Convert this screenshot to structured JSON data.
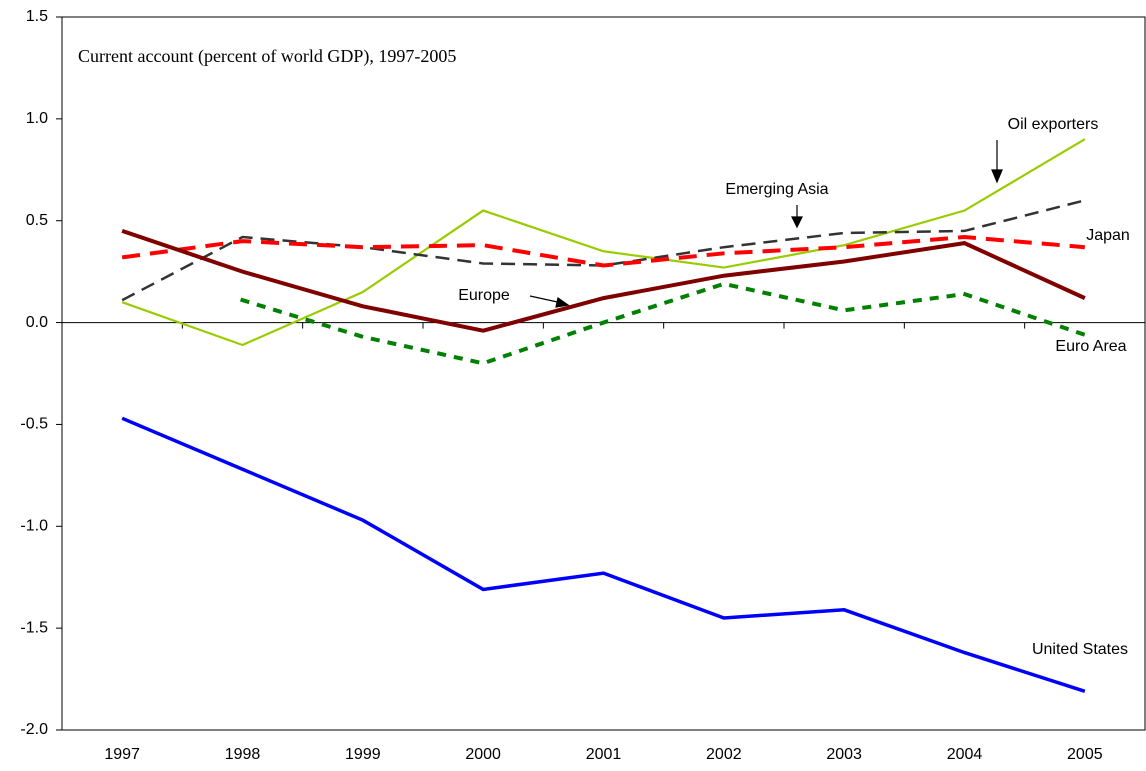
{
  "chart_data": {
    "type": "line",
    "title": "Current account (percent of world GDP), 1997-2005",
    "categories": [
      "1997",
      "1998",
      "1999",
      "2000",
      "2001",
      "2002",
      "2003",
      "2004",
      "2005"
    ],
    "ylim": [
      -2,
      1.5
    ],
    "yticks": [
      {
        "value": -2,
        "label": "-2.0"
      },
      -1.5,
      {
        "value": -1,
        "label": "-1.0"
      },
      -0.5,
      {
        "value": 0,
        "label": "0.0"
      },
      0.5,
      {
        "value": 1,
        "label": "1.0"
      },
      1.5
    ],
    "series": [
      {
        "name": "United States",
        "color": "#0000ff",
        "values": [
          -0.47,
          -0.72,
          -0.97,
          -1.31,
          -1.23,
          -1.45,
          -1.41,
          -1.62,
          -1.81
        ]
      },
      {
        "name": "Oil exporters",
        "color": "#99cc00",
        "values": [
          0.1,
          -0.11,
          0.15,
          0.55,
          0.35,
          0.27,
          0.38,
          0.55,
          0.9
        ]
      },
      {
        "name": "Emerging Asia",
        "color": "#333333",
        "values": [
          0.11,
          0.42,
          0.37,
          0.29,
          0.28,
          0.37,
          0.44,
          0.45,
          0.6
        ]
      },
      {
        "name": "Japan",
        "color": "#ff0000",
        "values": [
          0.32,
          0.4,
          0.37,
          0.38,
          0.28,
          0.34,
          0.37,
          0.42,
          0.37
        ]
      },
      {
        "name": "Europe",
        "color": "#800000",
        "values": [
          0.45,
          0.25,
          0.08,
          -0.04,
          0.12,
          0.23,
          0.3,
          0.39,
          0.12
        ]
      },
      {
        "name": "Euro Area",
        "color": "#008000",
        "values": [
          null,
          0.11,
          -0.07,
          -0.2,
          0.0,
          0.19,
          0.06,
          0.14,
          -0.06
        ]
      }
    ]
  }
}
